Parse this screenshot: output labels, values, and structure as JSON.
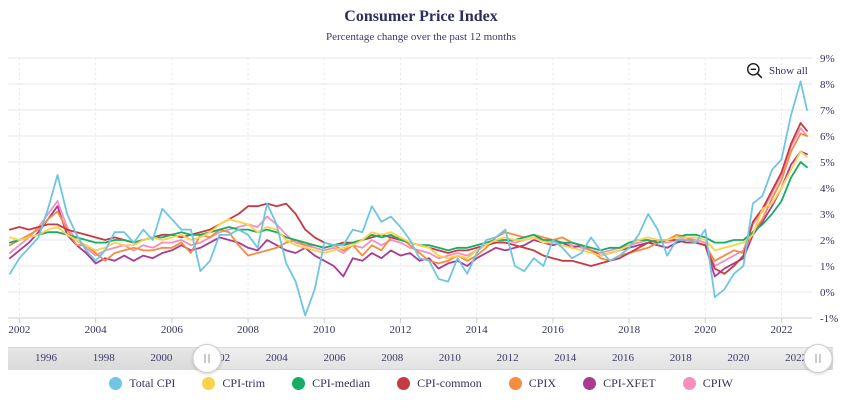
{
  "header": {
    "title": "Consumer Price Index",
    "subtitle": "Percentage change over the past 12 months"
  },
  "controls": {
    "show_all_label": "Show all"
  },
  "colors": {
    "text": "#33335e",
    "grid": "#e7e7e7",
    "axis_line": "#cfcfcf",
    "accent_blue": "#6FC5E4"
  },
  "navigator": {
    "years": [
      1996,
      1998,
      2000,
      2002,
      2004,
      2006,
      2008,
      2010,
      2012,
      2014,
      2016,
      2018,
      2020,
      2022
    ]
  },
  "chart_data": {
    "type": "line",
    "title": "Consumer Price Index",
    "subtitle": "Percentage change over the past 12 months",
    "xlabel": "",
    "ylabel": "",
    "ylim": [
      -1,
      9
    ],
    "grid": true,
    "legend_position": "bottom",
    "y_tick_values": [
      9,
      8,
      7,
      6,
      5,
      4,
      3,
      2,
      1,
      0,
      -1
    ],
    "y_tick_labels": [
      "9%",
      "8%",
      "7%",
      "6%",
      "5%",
      "4%",
      "3%",
      "2%",
      "1%",
      "0%",
      "-1%"
    ],
    "x_tick_values": [
      2002,
      2004,
      2006,
      2008,
      2010,
      2012,
      2014,
      2016,
      2018,
      2020,
      2022
    ],
    "x_tick_labels": [
      "2002",
      "2004",
      "2006",
      "2008",
      "2010",
      "2012",
      "2014",
      "2016",
      "2018",
      "2020",
      "2022"
    ],
    "x": [
      2001.75,
      2002,
      2002.25,
      2002.5,
      2002.75,
      2003,
      2003.25,
      2003.5,
      2003.75,
      2004,
      2004.25,
      2004.5,
      2004.75,
      2005,
      2005.25,
      2005.5,
      2005.75,
      2006,
      2006.25,
      2006.5,
      2006.75,
      2007,
      2007.25,
      2007.5,
      2007.75,
      2008,
      2008.25,
      2008.5,
      2008.75,
      2009,
      2009.25,
      2009.5,
      2009.75,
      2010,
      2010.25,
      2010.5,
      2010.75,
      2011,
      2011.25,
      2011.5,
      2011.75,
      2012,
      2012.25,
      2012.5,
      2012.75,
      2013,
      2013.25,
      2013.5,
      2013.75,
      2014,
      2014.25,
      2014.5,
      2014.75,
      2015,
      2015.25,
      2015.5,
      2015.75,
      2016,
      2016.25,
      2016.5,
      2016.75,
      2017,
      2017.25,
      2017.5,
      2017.75,
      2018,
      2018.25,
      2018.5,
      2018.75,
      2019,
      2019.25,
      2019.5,
      2019.75,
      2020,
      2020.25,
      2020.5,
      2020.75,
      2021,
      2021.25,
      2021.5,
      2021.75,
      2022,
      2022.25,
      2022.5,
      2022.67
    ],
    "series": [
      {
        "name": "Total CPI",
        "color": "#6FC5E4",
        "values": [
          0.7,
          1.3,
          1.7,
          2.1,
          3.2,
          4.5,
          3.0,
          2.2,
          1.6,
          1.2,
          1.6,
          2.3,
          2.3,
          1.9,
          2.4,
          2.0,
          3.2,
          2.8,
          2.4,
          2.4,
          0.8,
          1.2,
          2.2,
          2.2,
          2.4,
          2.2,
          1.7,
          3.4,
          2.6,
          1.1,
          0.4,
          -0.9,
          0.1,
          1.9,
          1.8,
          1.8,
          2.4,
          2.3,
          3.3,
          2.7,
          2.9,
          2.5,
          2.0,
          1.3,
          1.2,
          0.5,
          0.4,
          1.3,
          0.7,
          1.5,
          2.0,
          2.1,
          2.4,
          1.0,
          0.8,
          1.3,
          1.0,
          2.0,
          1.7,
          1.3,
          1.5,
          2.1,
          1.6,
          1.2,
          1.4,
          1.7,
          2.2,
          3.0,
          2.4,
          1.4,
          2.0,
          2.0,
          1.9,
          2.4,
          -0.2,
          0.1,
          0.7,
          1.0,
          3.4,
          3.7,
          4.7,
          5.1,
          6.8,
          8.1,
          7.0
        ]
      },
      {
        "name": "CPI-trim",
        "color": "#FBD24B",
        "values": [
          2.1,
          2.0,
          2.1,
          2.2,
          2.4,
          2.5,
          2.2,
          2.0,
          1.8,
          1.6,
          1.7,
          1.9,
          1.8,
          1.8,
          2.0,
          2.1,
          2.0,
          2.1,
          2.2,
          2.0,
          2.1,
          2.3,
          2.6,
          2.8,
          2.7,
          2.6,
          2.3,
          2.5,
          2.4,
          2.0,
          1.8,
          1.7,
          1.6,
          1.5,
          1.6,
          1.7,
          1.8,
          2.0,
          2.3,
          2.2,
          2.3,
          2.1,
          1.9,
          1.8,
          1.7,
          1.4,
          1.3,
          1.4,
          1.3,
          1.6,
          1.8,
          2.0,
          2.1,
          2.0,
          2.0,
          2.1,
          1.9,
          1.9,
          1.8,
          1.7,
          1.6,
          1.5,
          1.4,
          1.5,
          1.6,
          1.8,
          2.0,
          2.1,
          2.0,
          2.0,
          2.1,
          2.1,
          2.1,
          2.0,
          1.6,
          1.7,
          1.8,
          1.9,
          2.2,
          3.2,
          3.4,
          4.0,
          4.7,
          5.4,
          5.2
        ]
      },
      {
        "name": "CPI-median",
        "color": "#17AC66",
        "values": [
          1.9,
          2.0,
          2.1,
          2.2,
          2.3,
          2.3,
          2.2,
          2.1,
          2.0,
          1.9,
          1.9,
          2.0,
          2.0,
          1.9,
          2.0,
          2.1,
          2.1,
          2.2,
          2.3,
          2.2,
          2.2,
          2.3,
          2.4,
          2.5,
          2.4,
          2.4,
          2.3,
          2.4,
          2.3,
          2.1,
          2.0,
          1.9,
          1.8,
          1.7,
          1.8,
          1.8,
          1.9,
          2.0,
          2.2,
          2.1,
          2.2,
          2.0,
          1.9,
          1.8,
          1.8,
          1.7,
          1.6,
          1.7,
          1.7,
          1.8,
          1.9,
          2.0,
          2.0,
          2.0,
          2.1,
          2.2,
          2.0,
          2.0,
          1.9,
          1.9,
          1.8,
          1.7,
          1.6,
          1.7,
          1.7,
          1.9,
          2.0,
          2.0,
          1.9,
          2.0,
          2.1,
          2.2,
          2.2,
          2.1,
          1.9,
          1.9,
          2.0,
          2.0,
          2.3,
          2.6,
          3.0,
          3.5,
          4.4,
          5.0,
          4.8
        ]
      },
      {
        "name": "CPI-common",
        "color": "#C53B43",
        "values": [
          2.4,
          2.5,
          2.4,
          2.5,
          2.6,
          2.6,
          2.4,
          2.3,
          2.2,
          2.1,
          2.0,
          2.1,
          2.0,
          1.9,
          2.0,
          2.1,
          2.2,
          2.2,
          2.1,
          2.2,
          2.3,
          2.4,
          2.6,
          2.8,
          3.0,
          3.3,
          3.3,
          3.4,
          3.3,
          3.4,
          3.0,
          2.4,
          2.1,
          1.9,
          1.8,
          1.9,
          1.9,
          2.0,
          2.1,
          2.2,
          2.1,
          2.0,
          1.9,
          1.8,
          1.7,
          1.6,
          1.5,
          1.6,
          1.6,
          1.7,
          1.8,
          1.9,
          1.9,
          1.8,
          1.7,
          1.6,
          1.4,
          1.3,
          1.2,
          1.2,
          1.1,
          1.0,
          1.1,
          1.2,
          1.3,
          1.5,
          1.7,
          1.9,
          2.0,
          2.0,
          2.0,
          1.9,
          1.9,
          1.8,
          0.9,
          0.7,
          1.0,
          1.4,
          2.7,
          3.2,
          3.9,
          4.6,
          5.7,
          6.5,
          6.2
        ]
      },
      {
        "name": "CPIX",
        "color": "#F58C44",
        "values": [
          1.8,
          2.0,
          2.2,
          2.4,
          2.8,
          3.1,
          2.4,
          1.8,
          1.8,
          1.5,
          1.2,
          1.5,
          1.6,
          1.7,
          1.6,
          1.6,
          1.7,
          1.7,
          1.9,
          1.5,
          2.2,
          2.1,
          2.4,
          2.3,
          1.8,
          1.4,
          1.5,
          1.6,
          1.7,
          1.9,
          2.0,
          1.8,
          1.8,
          1.7,
          1.8,
          1.6,
          1.8,
          1.4,
          1.8,
          1.6,
          2.1,
          2.1,
          1.8,
          1.5,
          1.2,
          1.1,
          1.2,
          1.4,
          1.2,
          1.4,
          1.7,
          2.1,
          2.3,
          2.2,
          2.1,
          2.2,
          2.1,
          2.0,
          2.1,
          1.9,
          1.8,
          1.6,
          1.3,
          1.2,
          1.4,
          1.5,
          1.6,
          1.7,
          1.9,
          2.0,
          2.2,
          2.1,
          1.9,
          1.8,
          1.2,
          1.4,
          1.6,
          1.5,
          2.3,
          2.8,
          3.6,
          4.3,
          5.4,
          6.1,
          6.0
        ]
      },
      {
        "name": "CPI-XFET",
        "color": "#A93B94",
        "values": [
          1.3,
          1.6,
          1.9,
          2.3,
          2.8,
          3.3,
          2.2,
          1.8,
          1.5,
          1.1,
          1.3,
          1.2,
          1.4,
          1.2,
          1.4,
          1.3,
          1.5,
          1.6,
          1.8,
          1.6,
          1.7,
          1.9,
          2.1,
          2.0,
          1.9,
          1.7,
          1.6,
          2.0,
          1.8,
          1.6,
          1.5,
          1.7,
          1.4,
          1.2,
          1.0,
          0.6,
          1.3,
          1.2,
          1.5,
          1.3,
          1.6,
          1.4,
          1.5,
          1.2,
          1.3,
          0.9,
          1.1,
          1.2,
          1.0,
          1.3,
          1.5,
          1.7,
          1.6,
          1.7,
          1.8,
          2.0,
          1.9,
          1.8,
          1.9,
          1.7,
          1.8,
          1.6,
          1.4,
          1.5,
          1.6,
          1.7,
          1.8,
          1.9,
          1.8,
          1.7,
          1.9,
          2.0,
          1.9,
          1.8,
          0.6,
          0.9,
          1.1,
          1.3,
          2.2,
          2.7,
          3.3,
          4.0,
          4.9,
          5.4,
          5.3
        ]
      },
      {
        "name": "CPIW",
        "color": "#F391BC",
        "values": [
          1.5,
          1.8,
          2.1,
          2.5,
          3.0,
          3.5,
          2.5,
          2.0,
          1.7,
          1.4,
          1.6,
          1.7,
          1.8,
          1.6,
          1.8,
          1.7,
          1.9,
          1.9,
          2.0,
          1.8,
          1.9,
          2.1,
          2.3,
          2.4,
          2.5,
          2.6,
          2.5,
          2.9,
          2.6,
          2.2,
          1.9,
          1.8,
          1.7,
          1.6,
          1.7,
          1.5,
          1.8,
          1.7,
          2.0,
          1.8,
          2.0,
          1.9,
          1.7,
          1.6,
          1.5,
          1.3,
          1.4,
          1.5,
          1.4,
          1.6,
          1.8,
          1.9,
          2.0,
          1.9,
          2.0,
          2.1,
          2.0,
          1.9,
          1.9,
          1.8,
          1.7,
          1.6,
          1.5,
          1.6,
          1.7,
          1.8,
          1.9,
          2.0,
          1.9,
          1.9,
          2.0,
          2.1,
          2.0,
          1.9,
          1.0,
          1.2,
          1.4,
          1.6,
          2.6,
          3.1,
          3.8,
          4.5,
          5.6,
          6.3,
          6.0
        ]
      }
    ]
  }
}
